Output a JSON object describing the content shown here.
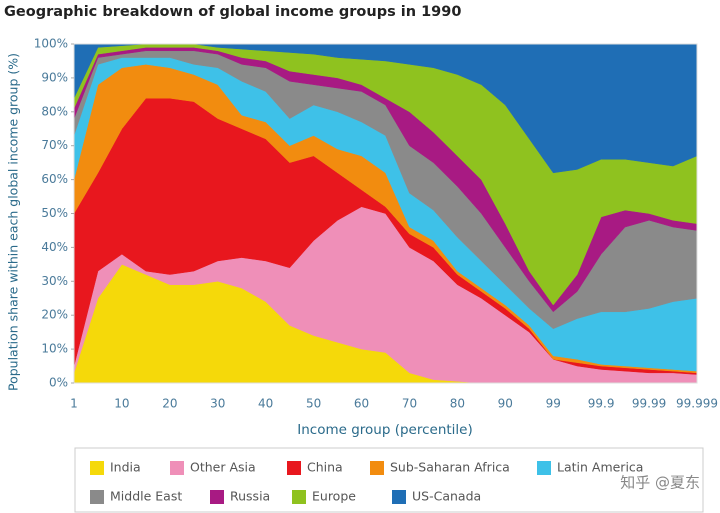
{
  "chart_data": {
    "type": "stacked-area",
    "title": "Geographic breakdown of global income groups in 1990",
    "y_label": "Population share within each global income group (%)",
    "x_label": "Income group (percentile)",
    "watermark": "知乎 @夏东",
    "categories": [
      "1",
      null,
      "10",
      null,
      "20",
      null,
      "30",
      null,
      "40",
      null,
      "50",
      null,
      "60",
      null,
      "70",
      null,
      "80",
      null,
      "90",
      null,
      "99",
      null,
      "99.9",
      null,
      "99.99",
      null,
      "99.999"
    ],
    "ylim": [
      0,
      100
    ],
    "yticks": [
      {
        "value": 0,
        "label": "0%"
      },
      {
        "value": 10,
        "label": "10%"
      },
      {
        "value": 20,
        "label": "20%"
      },
      {
        "value": 30,
        "label": "30%"
      },
      {
        "value": 40,
        "label": "40%"
      },
      {
        "value": 50,
        "label": "50%"
      },
      {
        "value": 60,
        "label": "60%"
      },
      {
        "value": 70,
        "label": "70%"
      },
      {
        "value": 80,
        "label": "80%"
      },
      {
        "value": 90,
        "label": "90%"
      },
      {
        "value": 100,
        "label": "100%"
      }
    ],
    "grid": false,
    "series": [
      {
        "name": "India",
        "color": "#f5d90a",
        "values": [
          3,
          25,
          35,
          32,
          29,
          29,
          30,
          28,
          24,
          17,
          14,
          12,
          10,
          9,
          3,
          1,
          0.5,
          0,
          0,
          0,
          0,
          0,
          0,
          0,
          0,
          0,
          0
        ]
      },
      {
        "name": "Other Asia",
        "color": "#ef8fb8",
        "values": [
          2,
          8,
          3,
          1,
          3,
          4,
          6,
          9,
          12,
          17,
          28,
          36,
          42,
          41,
          37,
          35,
          28.5,
          25,
          20,
          15,
          7,
          5,
          4,
          3.5,
          3,
          3,
          2.5
        ]
      },
      {
        "name": "China",
        "color": "#e8171e",
        "values": [
          45,
          29,
          37,
          51,
          52,
          50,
          42,
          38,
          36,
          31,
          25,
          14,
          5,
          2,
          4,
          4,
          3,
          2,
          2,
          1,
          0,
          1,
          1,
          1,
          1,
          0.5,
          0.5
        ]
      },
      {
        "name": "Sub-Saharan Africa",
        "color": "#f28c0f",
        "values": [
          10,
          26,
          18,
          10,
          9,
          8,
          10,
          4,
          5,
          5,
          6,
          7,
          10,
          10,
          2,
          2,
          1,
          1,
          1,
          1,
          1,
          1,
          0.5,
          0.5,
          0.5,
          0.5,
          0.5
        ]
      },
      {
        "name": "Latin America",
        "color": "#3ec1e8",
        "values": [
          13,
          6,
          3,
          2,
          3,
          3,
          5,
          10,
          9,
          8,
          9,
          11,
          10,
          11,
          10,
          9,
          10,
          8,
          6,
          5,
          8,
          12,
          15.5,
          16,
          17.5,
          20,
          21.5
        ]
      },
      {
        "name": "Middle East",
        "color": "#8a8a8a",
        "values": [
          5,
          2,
          1,
          2,
          2,
          4,
          4,
          5,
          7,
          11,
          6,
          7,
          9,
          9,
          14,
          14,
          15,
          14,
          11,
          8,
          5,
          8,
          17,
          25,
          26,
          22,
          20
        ]
      },
      {
        "name": "Russia",
        "color": "#a81a83",
        "values": [
          3,
          1,
          1,
          1,
          1,
          1,
          1,
          2,
          2,
          3,
          3,
          3,
          2,
          2,
          10,
          9,
          9,
          10,
          7,
          3,
          2,
          5,
          11,
          5,
          2,
          2,
          2
        ]
      },
      {
        "name": "Europe",
        "color": "#8fc21f",
        "values": [
          3,
          2,
          1.5,
          1,
          1,
          1,
          1,
          2.5,
          3,
          5.5,
          6,
          6,
          7.5,
          11,
          14,
          19,
          24,
          28,
          35,
          39,
          39,
          31,
          17,
          15,
          15,
          16,
          20
        ]
      },
      {
        "name": "US-Canada",
        "color": "#1f6eb5",
        "values": [
          16,
          1,
          0.5,
          0,
          0,
          0,
          1,
          1.5,
          2,
          2.5,
          3,
          4,
          4.5,
          5,
          6,
          7,
          9,
          12,
          18,
          28,
          38,
          37,
          34,
          34,
          35,
          36,
          33
        ]
      }
    ]
  }
}
